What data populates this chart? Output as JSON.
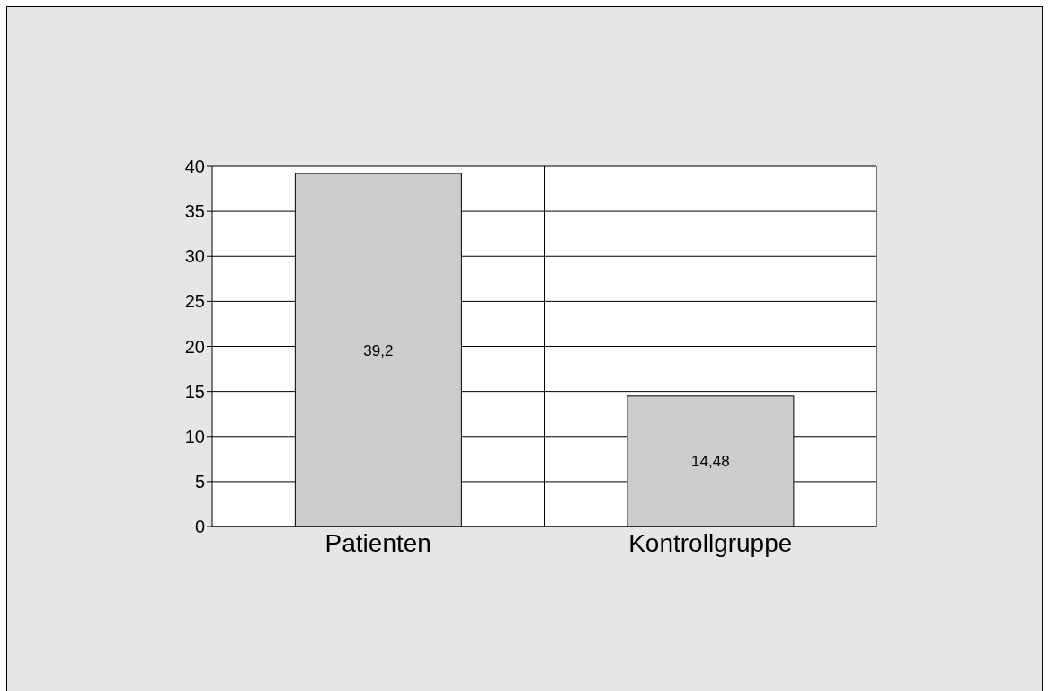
{
  "chart_data": {
    "type": "bar",
    "categories": [
      "Patienten",
      "Kontrollgruppe"
    ],
    "values": [
      39.2,
      14.48
    ],
    "value_labels": [
      "39,2",
      "14,48"
    ],
    "color": "#cccccc",
    "ylim": [
      0,
      40
    ],
    "yticks": [
      0,
      5,
      10,
      15,
      20,
      25,
      30,
      35,
      40
    ],
    "grid": true
  }
}
